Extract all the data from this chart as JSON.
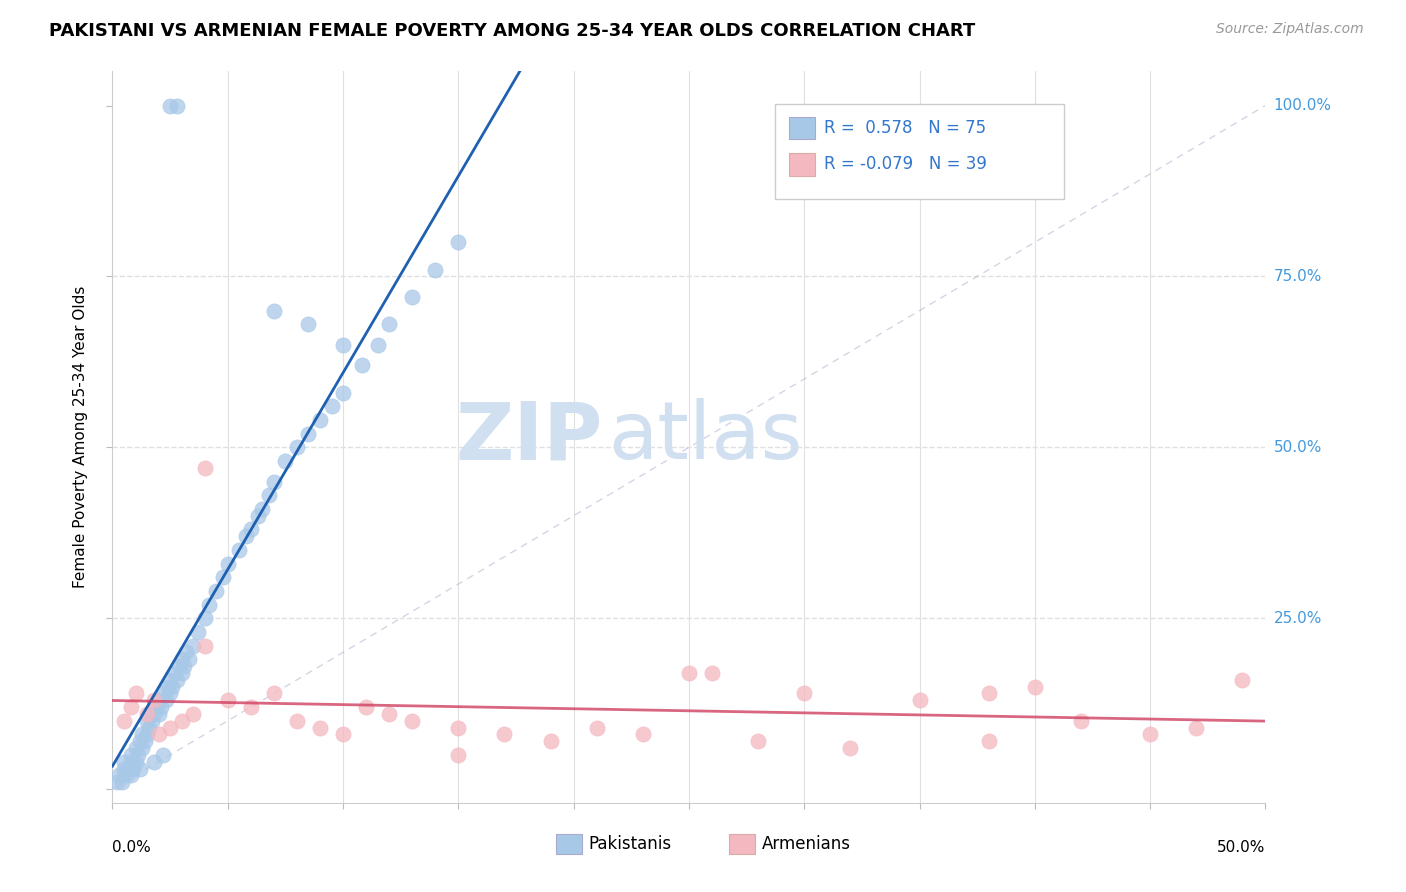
{
  "title": "PAKISTANI VS ARMENIAN FEMALE POVERTY AMONG 25-34 YEAR OLDS CORRELATION CHART",
  "source_text": "Source: ZipAtlas.com",
  "ylabel_label": "Female Poverty Among 25-34 Year Olds",
  "xlim": [
    0.0,
    0.5
  ],
  "ylim": [
    -0.02,
    1.05
  ],
  "y_ticks": [
    0.0,
    0.25,
    0.5,
    0.75,
    1.0
  ],
  "y_tick_labels": [
    "",
    "25.0%",
    "50.0%",
    "75.0%",
    "100.0%"
  ],
  "x_tick_labels_show": [
    "0.0%",
    "50.0%"
  ],
  "legend_r1": "R =  0.578",
  "legend_n1": "N = 75",
  "legend_r2": "R = -0.079",
  "legend_n2": "N = 39",
  "pakistani_color": "#a8c8e8",
  "armenian_color": "#f4b8c0",
  "pakistani_line_color": "#2060b0",
  "armenian_line_color": "#d04060",
  "watermark_zip": "ZIP",
  "watermark_atlas": "atlas",
  "watermark_color": "#d0e0f0",
  "background_color": "#ffffff",
  "grid_color": "#e0e0e0",
  "legend_text_color": "#3377cc",
  "right_tick_color": "#4499dd"
}
